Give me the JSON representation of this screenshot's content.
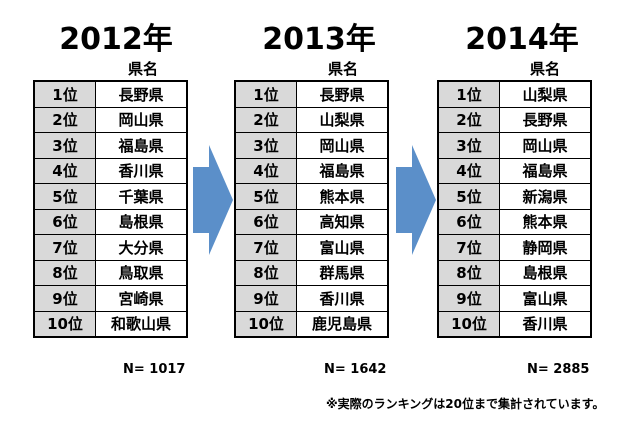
{
  "tables": [
    {
      "year": "2012年",
      "header": "県名",
      "rows": [
        {
          "rank": "1位",
          "pref": "長野県"
        },
        {
          "rank": "2位",
          "pref": "岡山県"
        },
        {
          "rank": "3位",
          "pref": "福島県"
        },
        {
          "rank": "4位",
          "pref": "香川県"
        },
        {
          "rank": "5位",
          "pref": "千葉県"
        },
        {
          "rank": "6位",
          "pref": "島根県"
        },
        {
          "rank": "7位",
          "pref": "大分県"
        },
        {
          "rank": "8位",
          "pref": "鳥取県"
        },
        {
          "rank": "9位",
          "pref": "宮崎県"
        },
        {
          "rank": "10位",
          "pref": "和歌山県"
        }
      ],
      "n": "N=  1017"
    },
    {
      "year": "2013年",
      "header": "県名",
      "rows": [
        {
          "rank": "1位",
          "pref": "長野県"
        },
        {
          "rank": "2位",
          "pref": "山梨県"
        },
        {
          "rank": "3位",
          "pref": "岡山県"
        },
        {
          "rank": "4位",
          "pref": "福島県"
        },
        {
          "rank": "5位",
          "pref": "熊本県"
        },
        {
          "rank": "6位",
          "pref": "高知県"
        },
        {
          "rank": "7位",
          "pref": "富山県"
        },
        {
          "rank": "8位",
          "pref": "群馬県"
        },
        {
          "rank": "9位",
          "pref": "香川県"
        },
        {
          "rank": "10位",
          "pref": "鹿児島県"
        }
      ],
      "n": "N=  1642"
    },
    {
      "year": "2014年",
      "header": "県名",
      "rows": [
        {
          "rank": "1位",
          "pref": "山梨県"
        },
        {
          "rank": "2位",
          "pref": "長野県"
        },
        {
          "rank": "3位",
          "pref": "岡山県"
        },
        {
          "rank": "4位",
          "pref": "福島県"
        },
        {
          "rank": "5位",
          "pref": "新潟県"
        },
        {
          "rank": "6位",
          "pref": "熊本県"
        },
        {
          "rank": "7位",
          "pref": "静岡県"
        },
        {
          "rank": "8位",
          "pref": "島根県"
        },
        {
          "rank": "9位",
          "pref": "富山県"
        },
        {
          "rank": "10位",
          "pref": "香川県"
        }
      ],
      "n": "N=  2885"
    }
  ],
  "footnote": "※実際のランキングは20位まで集計されています。",
  "colors": {
    "arrow": "#5b8fc9",
    "rank_cell": "#d9d9d9"
  }
}
